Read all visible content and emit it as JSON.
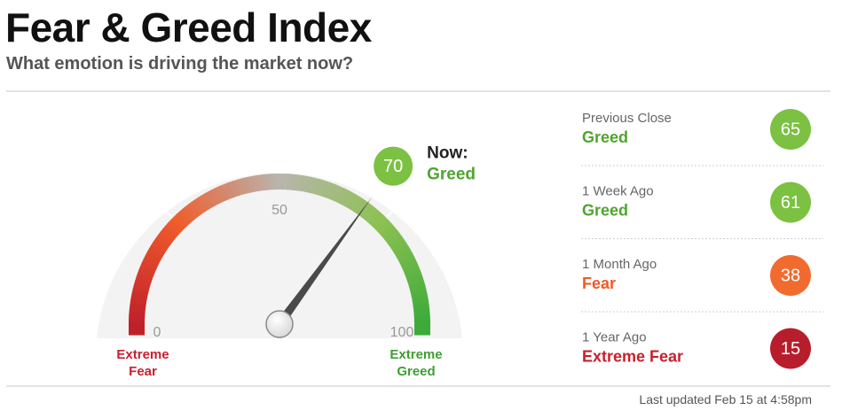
{
  "title": "Fear & Greed Index",
  "subtitle": "What emotion is driving the market now?",
  "chart_data": {
    "type": "gauge",
    "value": 70,
    "value_color": "#7cc142",
    "current_label": "Now:",
    "current_rating": "Greed",
    "current_rating_color": "#4fa52f",
    "ylim": [
      0,
      100
    ],
    "yticks": [
      0,
      50,
      100
    ],
    "min_label": "Extreme Fear",
    "min_label_color": "#c8202e",
    "max_label": "Extreme Greed",
    "max_label_color": "#3f9e35"
  },
  "history": [
    {
      "label": "Previous Close",
      "rating": "Greed",
      "value": 65,
      "color": "#7cc142",
      "rating_color": "#4fa52f"
    },
    {
      "label": "1 Week Ago",
      "rating": "Greed",
      "value": 61,
      "color": "#7cc142",
      "rating_color": "#4fa52f"
    },
    {
      "label": "1 Month Ago",
      "rating": "Fear",
      "value": 38,
      "color": "#f26b2e",
      "rating_color": "#f05a28"
    },
    {
      "label": "1 Year Ago",
      "rating": "Extreme Fear",
      "value": 15,
      "color": "#b81d2c",
      "rating_color": "#c8202e"
    }
  ],
  "footer": "Last updated Feb 15 at 4:58pm"
}
